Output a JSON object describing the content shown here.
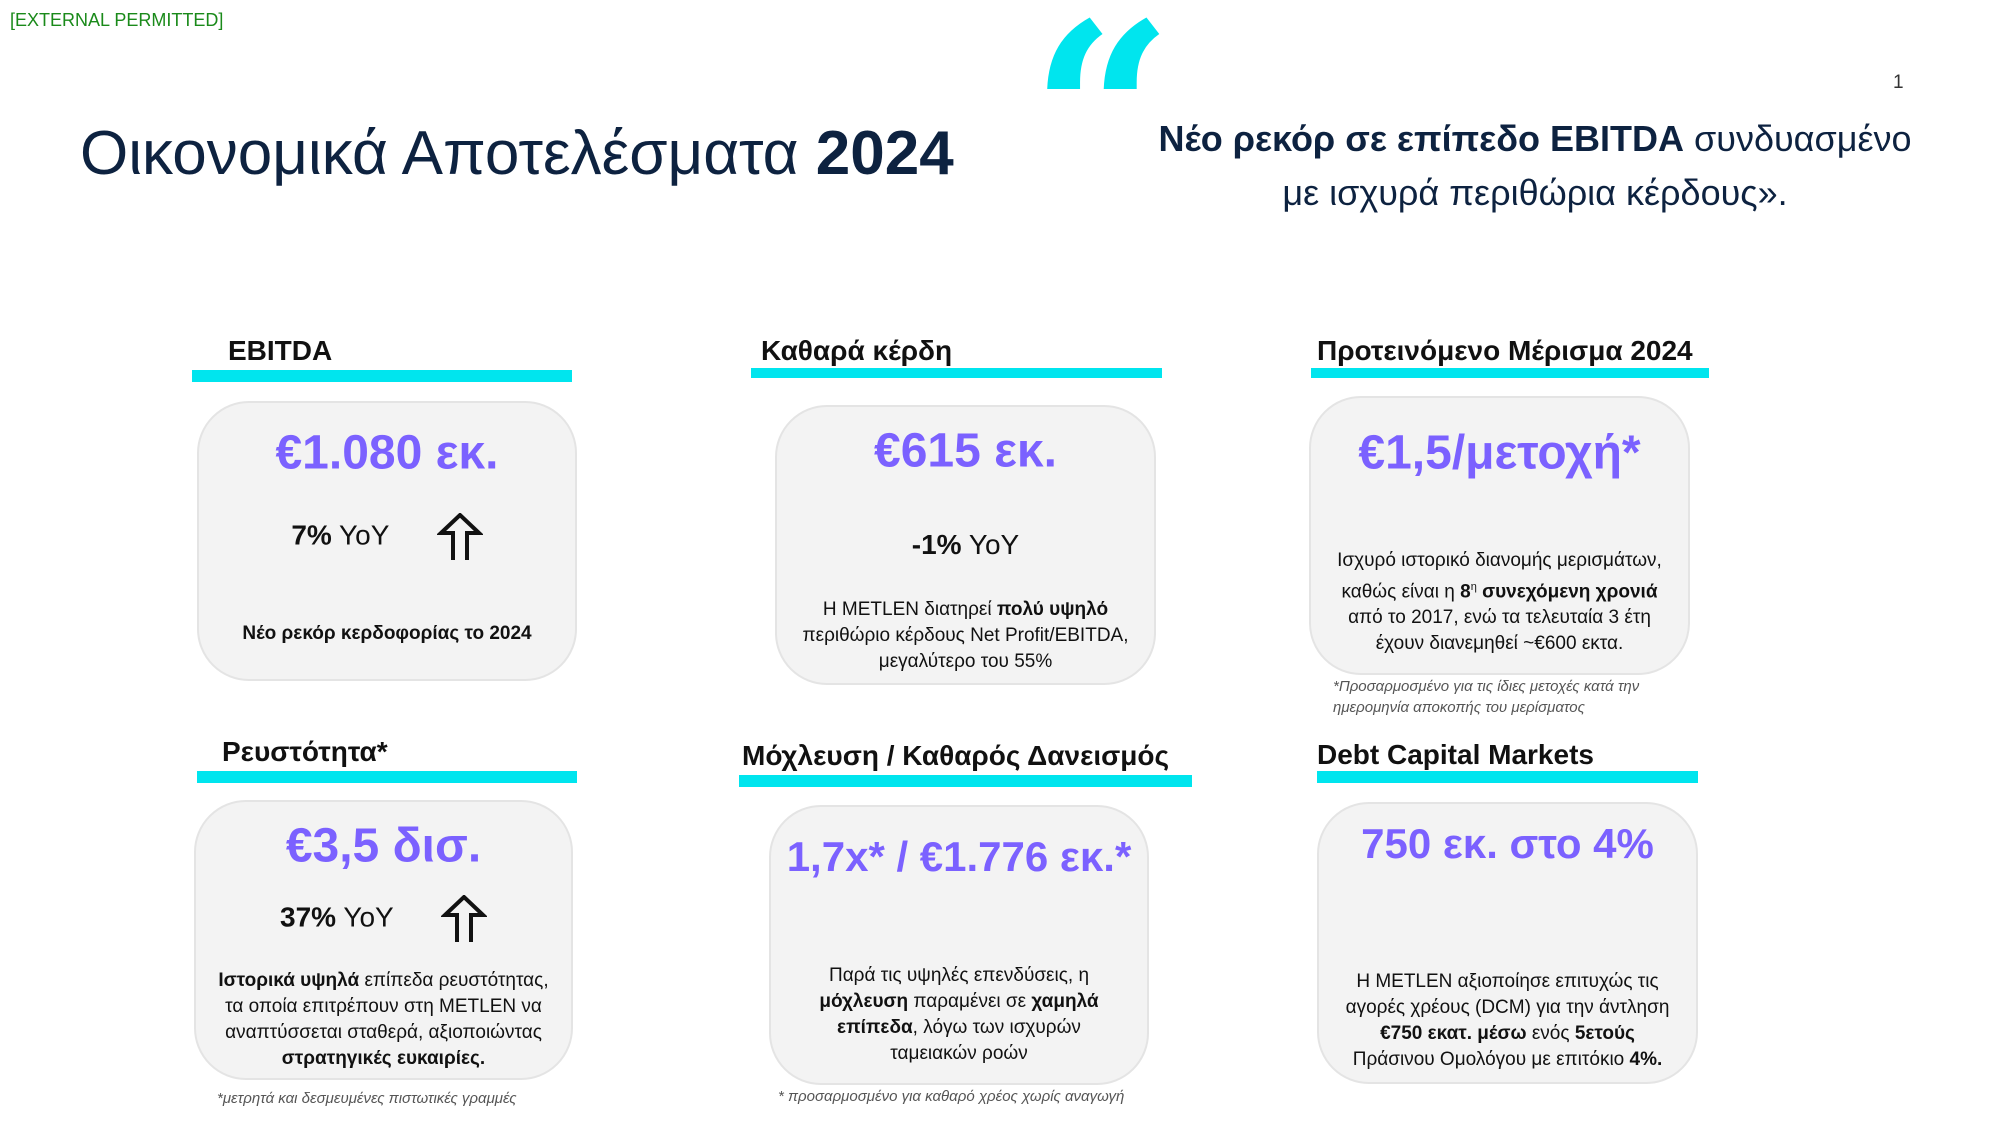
{
  "classification": "[EXTERNAL PERMITTED]",
  "page_number": "1",
  "title": {
    "regular": "Οικονομικά Αποτελέσματα ",
    "bold": "2024"
  },
  "quote": {
    "mark": "“",
    "bold": "Νέο ρεκόρ σε επίπεδο EBITDA",
    "rest_line1": " συνδυασμένο",
    "line2": "με ισχυρά περιθώρια κέρδους»."
  },
  "accent_color": "#00e5ee",
  "value_color": "#7b61ff",
  "cards": {
    "ebitda": {
      "heading": "EBITDA",
      "value": "€1.080 εκ.",
      "yoy_pct": "7%",
      "yoy_label": " YoY",
      "arrow": "up-arrow-icon",
      "caption": "Νέο ρεκόρ κερδοφορίας το 2024"
    },
    "net_profit": {
      "heading": "Καθαρά κέρδη",
      "value": "€615 εκ.",
      "yoy_pct": "-1%",
      "yoy_label": " YoY",
      "body": {
        "p1": "Η METLEN διατηρεί ",
        "b1": "πολύ υψηλό",
        "p2": "περιθώριο κέρδους Net Profit/EBITDA,",
        "p3": "μεγαλύτερο του 55%"
      }
    },
    "dividend": {
      "heading": "Προτεινόμενο Μέρισμα 2024",
      "value": "€1,5/μετοχή*",
      "body": {
        "p1": "Ισχυρό ιστορικό διανομής μερισμάτων,",
        "p2": "καθώς είναι η ",
        "b1": "8",
        "sup": "η",
        "b2": " συνεχόμενη χρονιά",
        "p3": "από το 2017, ενώ τα τελευταία 3 έτη",
        "p4": "έχουν διανεμηθεί  ~€600 εκτα."
      },
      "footnote": {
        "l1": "*Προσαρμοσμένο για τις ίδιες μετοχές κατά την",
        "l2": "ημερομηνία αποκοπής του μερίσματος"
      }
    },
    "liquidity": {
      "heading": "Ρευστότητα*",
      "value": "€3,5 δισ.",
      "yoy_pct": "37%",
      "yoy_label": " YoY",
      "arrow": "up-arrow-icon",
      "body": {
        "b1": "Ιστορικά υψηλά",
        "p1": " επίπεδα ρευστότητας,",
        "p2": "τα οποία επιτρέπουν στη METLEN να",
        "p3": "αναπτύσσεται σταθερά, αξιοποιώντας",
        "b2": "στρατηγικές ευκαιρίες."
      },
      "footnote": "*μετρητά και δεσμευμένες πιστωτικές γραμμές"
    },
    "leverage": {
      "heading": "Μόχλευση / Καθαρός Δανεισμός",
      "value": "1,7x* / €1.776 εκ.*",
      "body": {
        "p1": "Παρά τις υψηλές επενδύσεις, η",
        "b1": "μόχλευση",
        "p2": " παραμένει σε ",
        "b2": "χαμηλά",
        "b3": "επίπεδα",
        "p3": ", λόγω των ισχυρών",
        "p4": "ταμειακών ροών"
      },
      "footnote": "* προσαρμοσμένο για καθαρό χρέος χωρίς αναγωγή"
    },
    "dcm": {
      "heading": "Debt Capital Markets",
      "value": "750 εκ. στο 4%",
      "body": {
        "p1": "Η METLEN αξιοποίησε επιτυχώς τις",
        "p2": "αγορές χρέους (DCM) για την άντληση",
        "b1": "€750 εκατ. μέσω",
        "p3": " ενός ",
        "b2": "5ετούς",
        "p4": "Πράσινου Ομολόγου με επιτόκιο ",
        "b3": "4%."
      }
    }
  }
}
